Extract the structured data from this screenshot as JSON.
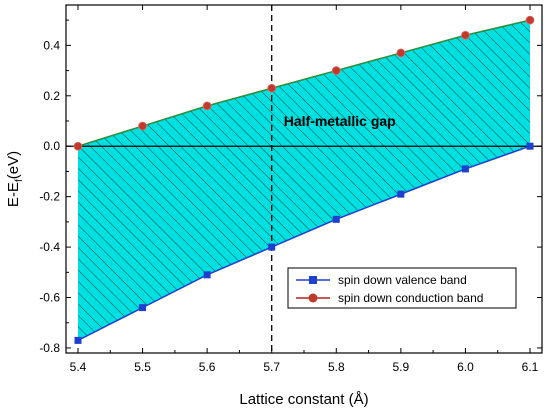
{
  "chart_data": {
    "type": "line",
    "title": "",
    "xlabel": "Lattice constant (Å)",
    "ylabel": "E-E",
    "ylabel_sub": "f",
    "ylabel_unit": "(eV)",
    "xlim": [
      5.4,
      6.1
    ],
    "ylim": [
      -0.82,
      0.56
    ],
    "x_ticks": [
      "5.4",
      "5.5",
      "5.6",
      "5.7",
      "5.8",
      "5.9",
      "6.0",
      "6.1"
    ],
    "y_ticks": [
      "-0.8",
      "-0.6",
      "-0.4",
      "-0.2",
      "0.0",
      "0.2",
      "0.4"
    ],
    "x_tick_values": [
      5.4,
      5.5,
      5.6,
      5.7,
      5.8,
      5.9,
      6.0,
      6.1
    ],
    "y_tick_values": [
      -0.8,
      -0.6,
      -0.4,
      -0.2,
      0.0,
      0.2,
      0.4
    ],
    "grid": false,
    "legend_position": "bottom-right",
    "x": [
      5.4,
      5.5,
      5.6,
      5.7,
      5.8,
      5.9,
      6.0,
      6.1
    ],
    "series": [
      {
        "name": "spin down valence band",
        "values": [
          -0.77,
          -0.64,
          -0.51,
          -0.4,
          -0.29,
          -0.19,
          -0.09,
          0.0
        ],
        "color": "#1f3fd1",
        "marker": "square"
      },
      {
        "name": "spin down conduction band",
        "values": [
          0.0,
          0.08,
          0.16,
          0.23,
          0.3,
          0.37,
          0.44,
          0.5
        ],
        "color": "#b22222",
        "marker": "circle",
        "line_color": "#2e8b3a"
      }
    ],
    "fill_color": "#00e0e0",
    "hatch_color": "#1a4a4a",
    "reference_lines": {
      "horizontal_y": 0.0,
      "vertical_x": 5.7
    },
    "annotation": "Half-metallic gap"
  }
}
